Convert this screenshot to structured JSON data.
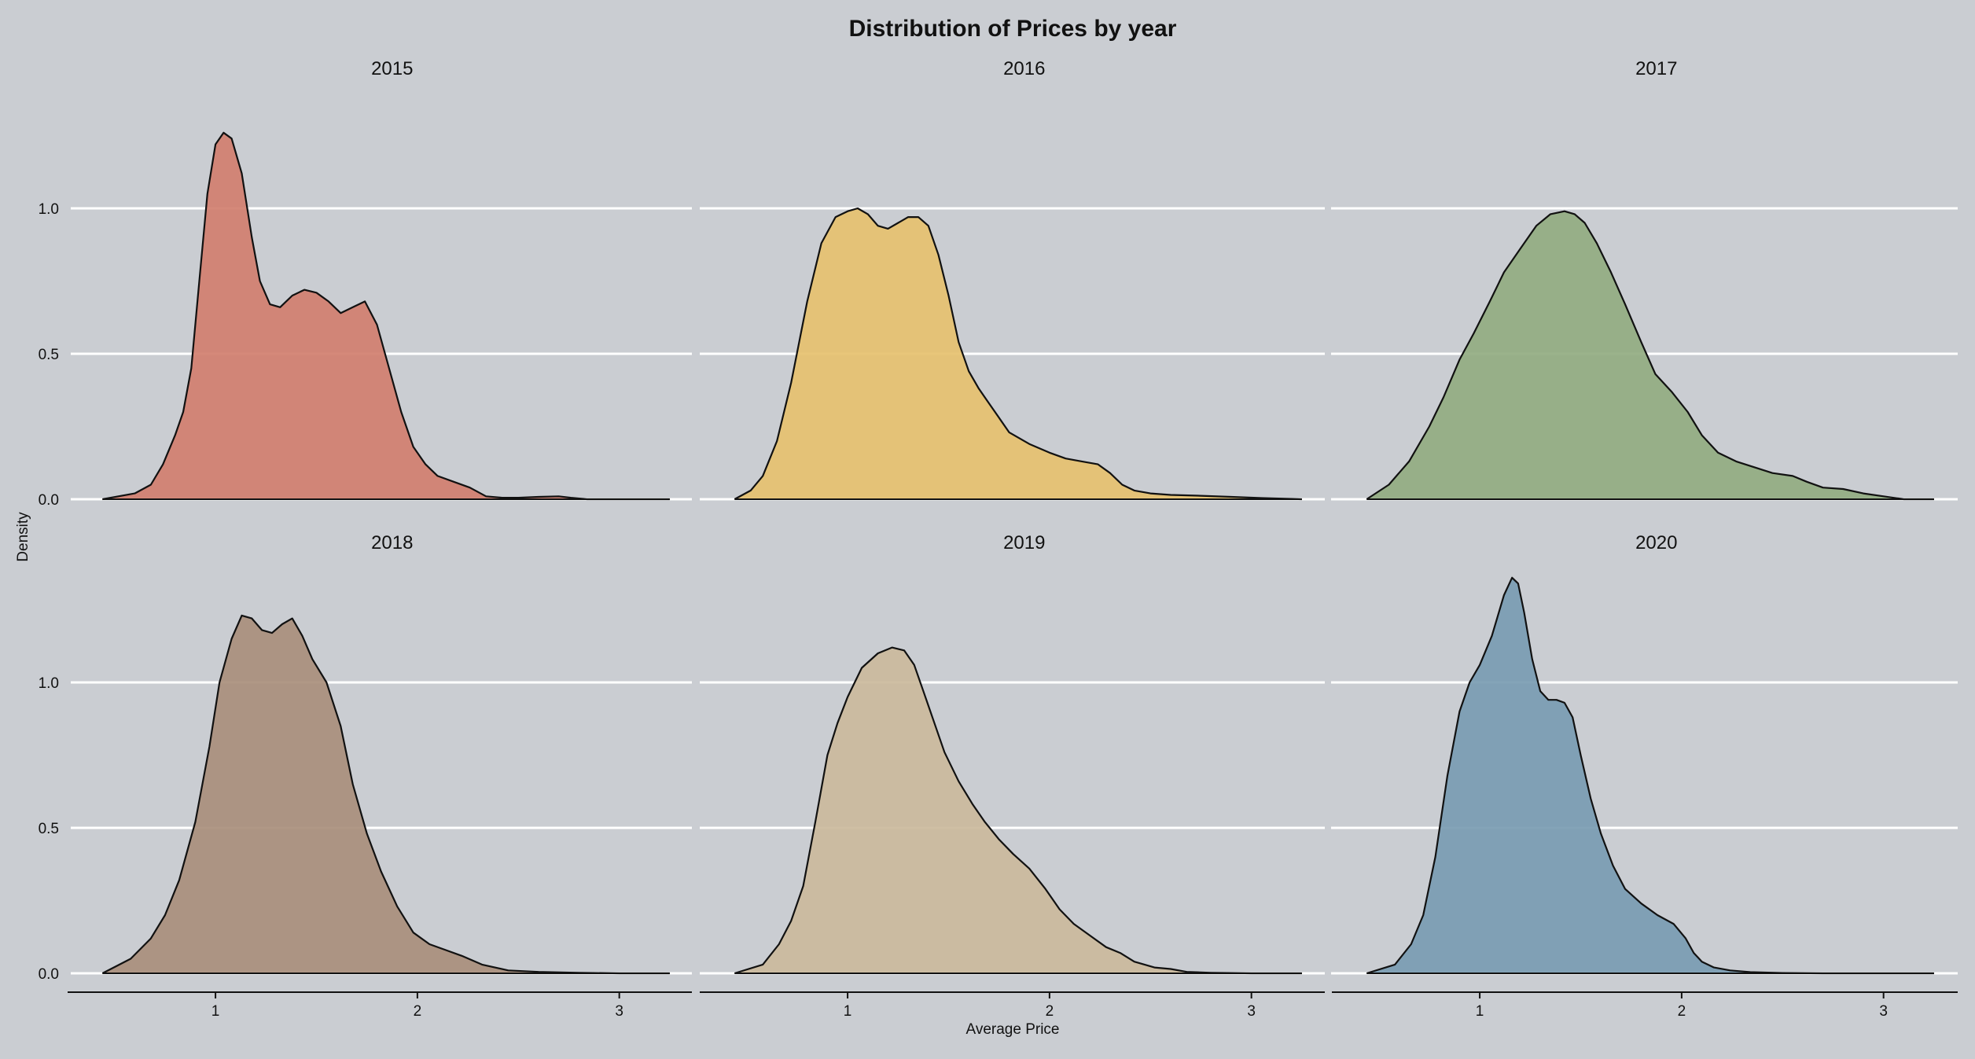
{
  "chart_data": {
    "type": "area",
    "title": "Distribution of Prices by year",
    "xlabel": "Average Price",
    "ylabel": "Density",
    "xlim": [
      0.4,
      3.25
    ],
    "ylim": [
      0,
      1.3
    ],
    "x_ticks": [
      1,
      2,
      3
    ],
    "y_ticks": [
      0.0,
      0.5,
      1.0
    ],
    "y_tick_labels": [
      "0.0",
      "0.5",
      "1.0"
    ],
    "grid": "horizontal",
    "legend": "none",
    "panels": [
      {
        "name": "2015",
        "color": "#d17f6f",
        "x": [
          0.44,
          0.6,
          0.68,
          0.74,
          0.8,
          0.84,
          0.88,
          0.92,
          0.96,
          1.0,
          1.04,
          1.08,
          1.13,
          1.18,
          1.22,
          1.27,
          1.32,
          1.38,
          1.44,
          1.5,
          1.56,
          1.62,
          1.68,
          1.74,
          1.8,
          1.86,
          1.92,
          1.98,
          2.04,
          2.1,
          2.18,
          2.26,
          2.34,
          2.42,
          2.5,
          2.6,
          2.7,
          2.76,
          2.84,
          2.95,
          3.1,
          3.25
        ],
        "y": [
          0.0,
          0.02,
          0.05,
          0.12,
          0.22,
          0.3,
          0.45,
          0.75,
          1.05,
          1.22,
          1.26,
          1.24,
          1.12,
          0.9,
          0.75,
          0.67,
          0.66,
          0.7,
          0.72,
          0.71,
          0.68,
          0.64,
          0.66,
          0.68,
          0.6,
          0.45,
          0.3,
          0.18,
          0.12,
          0.08,
          0.06,
          0.04,
          0.01,
          0.005,
          0.005,
          0.008,
          0.01,
          0.005,
          0.0,
          0.0,
          0.0,
          0.0
        ]
      },
      {
        "name": "2016",
        "color": "#e6c16f",
        "x": [
          0.44,
          0.52,
          0.58,
          0.65,
          0.72,
          0.8,
          0.87,
          0.94,
          1.0,
          1.05,
          1.1,
          1.15,
          1.2,
          1.25,
          1.3,
          1.35,
          1.4,
          1.45,
          1.5,
          1.55,
          1.6,
          1.65,
          1.7,
          1.75,
          1.8,
          1.9,
          2.0,
          2.08,
          2.16,
          2.24,
          2.3,
          2.36,
          2.42,
          2.5,
          2.6,
          2.75,
          2.9,
          3.05,
          3.25
        ],
        "y": [
          0.0,
          0.03,
          0.08,
          0.2,
          0.4,
          0.68,
          0.88,
          0.97,
          0.99,
          1.0,
          0.98,
          0.94,
          0.93,
          0.95,
          0.97,
          0.97,
          0.94,
          0.84,
          0.7,
          0.54,
          0.44,
          0.38,
          0.33,
          0.28,
          0.23,
          0.19,
          0.16,
          0.14,
          0.13,
          0.12,
          0.09,
          0.05,
          0.03,
          0.02,
          0.015,
          0.012,
          0.008,
          0.004,
          0.0
        ]
      },
      {
        "name": "2017",
        "color": "#93ac81",
        "x": [
          0.44,
          0.55,
          0.65,
          0.75,
          0.82,
          0.9,
          0.97,
          1.05,
          1.12,
          1.2,
          1.28,
          1.35,
          1.42,
          1.47,
          1.52,
          1.58,
          1.65,
          1.72,
          1.8,
          1.87,
          1.95,
          2.03,
          2.1,
          2.18,
          2.27,
          2.36,
          2.45,
          2.55,
          2.62,
          2.7,
          2.8,
          2.9,
          3.0,
          3.1,
          3.25
        ],
        "y": [
          0.0,
          0.05,
          0.13,
          0.25,
          0.35,
          0.48,
          0.57,
          0.68,
          0.78,
          0.86,
          0.94,
          0.98,
          0.99,
          0.98,
          0.95,
          0.88,
          0.78,
          0.67,
          0.54,
          0.43,
          0.37,
          0.3,
          0.22,
          0.16,
          0.13,
          0.11,
          0.09,
          0.08,
          0.06,
          0.04,
          0.035,
          0.02,
          0.01,
          0.0,
          0.0
        ]
      },
      {
        "name": "2018",
        "color": "#a98f7c",
        "x": [
          0.44,
          0.58,
          0.68,
          0.75,
          0.82,
          0.9,
          0.97,
          1.02,
          1.08,
          1.13,
          1.18,
          1.23,
          1.28,
          1.33,
          1.38,
          1.43,
          1.48,
          1.55,
          1.62,
          1.68,
          1.75,
          1.82,
          1.9,
          1.98,
          2.06,
          2.14,
          2.22,
          2.32,
          2.45,
          2.6,
          2.8,
          3.0,
          3.25
        ],
        "y": [
          0.0,
          0.05,
          0.12,
          0.2,
          0.32,
          0.52,
          0.78,
          1.0,
          1.15,
          1.23,
          1.22,
          1.18,
          1.17,
          1.2,
          1.22,
          1.16,
          1.08,
          1.0,
          0.85,
          0.65,
          0.48,
          0.35,
          0.23,
          0.14,
          0.1,
          0.08,
          0.06,
          0.03,
          0.01,
          0.005,
          0.002,
          0.0,
          0.0
        ]
      },
      {
        "name": "2019",
        "color": "#cbba9c",
        "x": [
          0.44,
          0.58,
          0.66,
          0.72,
          0.78,
          0.84,
          0.9,
          0.95,
          1.0,
          1.07,
          1.15,
          1.22,
          1.28,
          1.33,
          1.38,
          1.43,
          1.48,
          1.55,
          1.62,
          1.68,
          1.75,
          1.82,
          1.9,
          1.98,
          2.05,
          2.12,
          2.2,
          2.28,
          2.35,
          2.42,
          2.52,
          2.6,
          2.68,
          2.8,
          3.0,
          3.25
        ],
        "y": [
          0.0,
          0.03,
          0.1,
          0.18,
          0.3,
          0.52,
          0.75,
          0.86,
          0.95,
          1.05,
          1.1,
          1.12,
          1.11,
          1.06,
          0.96,
          0.86,
          0.76,
          0.66,
          0.58,
          0.52,
          0.46,
          0.41,
          0.36,
          0.29,
          0.22,
          0.17,
          0.13,
          0.09,
          0.07,
          0.04,
          0.02,
          0.015,
          0.005,
          0.002,
          0.0,
          0.0
        ]
      },
      {
        "name": "2020",
        "color": "#7a9cb2",
        "x": [
          0.44,
          0.58,
          0.66,
          0.72,
          0.78,
          0.84,
          0.9,
          0.95,
          1.0,
          1.06,
          1.12,
          1.16,
          1.19,
          1.22,
          1.26,
          1.3,
          1.34,
          1.38,
          1.42,
          1.46,
          1.5,
          1.55,
          1.6,
          1.66,
          1.72,
          1.8,
          1.88,
          1.96,
          2.02,
          2.06,
          2.1,
          2.16,
          2.24,
          2.34,
          2.5,
          2.7,
          2.9,
          3.25
        ],
        "y": [
          0.0,
          0.03,
          0.1,
          0.2,
          0.4,
          0.68,
          0.9,
          1.0,
          1.06,
          1.16,
          1.3,
          1.36,
          1.34,
          1.24,
          1.08,
          0.97,
          0.94,
          0.94,
          0.93,
          0.88,
          0.75,
          0.6,
          0.48,
          0.37,
          0.29,
          0.24,
          0.2,
          0.17,
          0.12,
          0.07,
          0.04,
          0.02,
          0.01,
          0.004,
          0.001,
          0.0,
          0.0,
          0.0
        ]
      }
    ]
  }
}
